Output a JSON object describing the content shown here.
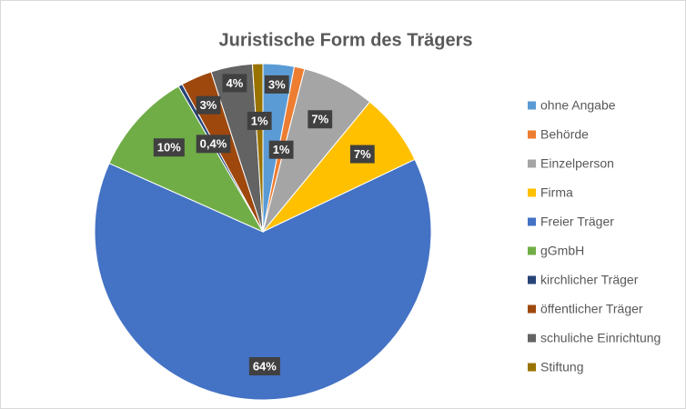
{
  "chart_data": {
    "type": "pie",
    "title": "Juristische Form des Trägers",
    "categories": [
      "ohne Angabe",
      "Behörde",
      "Einzelperson",
      "Firma",
      "Freier Träger",
      "gGmbH",
      "kirchlicher Träger",
      "öffentlicher Träger",
      "schuliche Einrichtung",
      "Stiftung"
    ],
    "values": [
      3,
      1,
      7,
      7,
      64,
      10,
      0.4,
      3,
      4,
      1
    ],
    "value_labels": [
      "3%",
      "1%",
      "7%",
      "7%",
      "64%",
      "10%",
      "0,4%",
      "3%",
      "4%",
      "1%"
    ],
    "colors": [
      "#5b9bd5",
      "#ed7d31",
      "#a5a5a5",
      "#ffc000",
      "#4472c4",
      "#70ad47",
      "#264478",
      "#9e480e",
      "#636363",
      "#997300"
    ],
    "legend": "right"
  }
}
